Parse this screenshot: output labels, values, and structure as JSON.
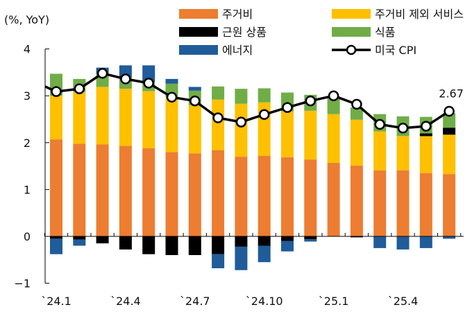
{
  "chart_data": {
    "type": "bar",
    "stacked": true,
    "overlay_line": "미국 CPI",
    "unit_label": "(%, YoY)",
    "x": [
      "24.1",
      "24.2",
      "24.3",
      "24.4",
      "24.5",
      "24.6",
      "24.7",
      "24.8",
      "24.9",
      "24.10",
      "24.11",
      "24.12",
      "25.1",
      "25.2",
      "25.3",
      "25.4",
      "25.5",
      "25.6"
    ],
    "x_tick_labels": [
      "`24.1",
      "`24.4",
      "`24.7",
      "`24.10",
      "`25.1",
      "`25.4"
    ],
    "x_tick_index": [
      0,
      3,
      6,
      9,
      12,
      15
    ],
    "ylim": [
      -1,
      4
    ],
    "y_ticks": [
      -1,
      0,
      1,
      2,
      3,
      4
    ],
    "series": [
      {
        "name": "주거비",
        "color": "#ED7D31",
        "values": [
          2.07,
          1.98,
          1.96,
          1.93,
          1.88,
          1.8,
          1.77,
          1.84,
          1.7,
          1.72,
          1.69,
          1.64,
          1.57,
          1.51,
          1.41,
          1.41,
          1.35,
          1.33
        ]
      },
      {
        "name": "주거비 제외 서비스",
        "color": "#FFC000",
        "values": [
          0.93,
          1.1,
          1.23,
          1.22,
          1.22,
          1.17,
          1.03,
          1.08,
          1.13,
          1.14,
          0.98,
          1.04,
          1.04,
          0.98,
          0.83,
          0.73,
          0.79,
          0.84
        ]
      },
      {
        "name": "근원 상품",
        "color": "#000000",
        "values": [
          -0.05,
          -0.07,
          -0.15,
          -0.28,
          -0.38,
          -0.4,
          -0.4,
          -0.38,
          -0.22,
          -0.2,
          -0.1,
          -0.06,
          0.0,
          -0.02,
          0.0,
          0.0,
          0.06,
          0.15
        ]
      },
      {
        "name": "식품",
        "color": "#70AD47",
        "values": [
          0.47,
          0.28,
          0.27,
          0.24,
          0.19,
          0.29,
          0.31,
          0.28,
          0.32,
          0.3,
          0.4,
          0.34,
          0.38,
          0.26,
          0.37,
          0.42,
          0.35,
          0.31
        ]
      },
      {
        "name": "에너지",
        "color": "#1F5C99",
        "values": [
          -0.33,
          -0.13,
          0.14,
          0.26,
          0.36,
          0.1,
          0.08,
          -0.3,
          -0.5,
          -0.35,
          -0.22,
          -0.05,
          0.0,
          0.0,
          -0.25,
          -0.28,
          -0.25,
          -0.05
        ]
      }
    ],
    "line": {
      "name": "미국 CPI",
      "values": [
        3.09,
        3.15,
        3.48,
        3.36,
        3.27,
        2.97,
        2.89,
        2.53,
        2.44,
        2.6,
        2.75,
        2.89,
        3.0,
        2.82,
        2.39,
        2.31,
        2.35,
        2.67
      ]
    },
    "annotation": "2.67"
  }
}
